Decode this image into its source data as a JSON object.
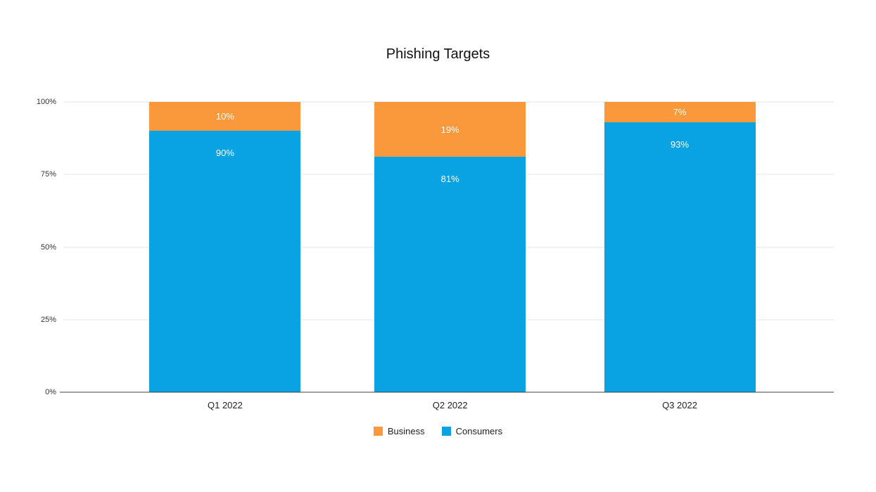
{
  "chart_data": {
    "type": "bar",
    "stacked": true,
    "title": "Phishing Targets",
    "categories": [
      "Q1 2022",
      "Q2 2022",
      "Q3 2022"
    ],
    "series": [
      {
        "name": "Consumers",
        "color": "#09A2E3",
        "values": [
          90,
          81,
          93
        ],
        "labels": [
          "90%",
          "81%",
          "93%"
        ]
      },
      {
        "name": "Business",
        "color": "#F9993B",
        "values": [
          10,
          19,
          7
        ],
        "labels": [
          "10%",
          "19%",
          "7%"
        ]
      }
    ],
    "xlabel": "",
    "ylabel": "",
    "ylim": [
      0,
      100
    ],
    "yticks": [
      0,
      25,
      50,
      75,
      100
    ],
    "ytick_labels": [
      "0%",
      "25%",
      "50%",
      "75%",
      "100%"
    ],
    "grid": true,
    "legend_position": "bottom",
    "legend": [
      {
        "label": "Business",
        "color": "#F9993B"
      },
      {
        "label": "Consumers",
        "color": "#09A2E3"
      }
    ]
  }
}
